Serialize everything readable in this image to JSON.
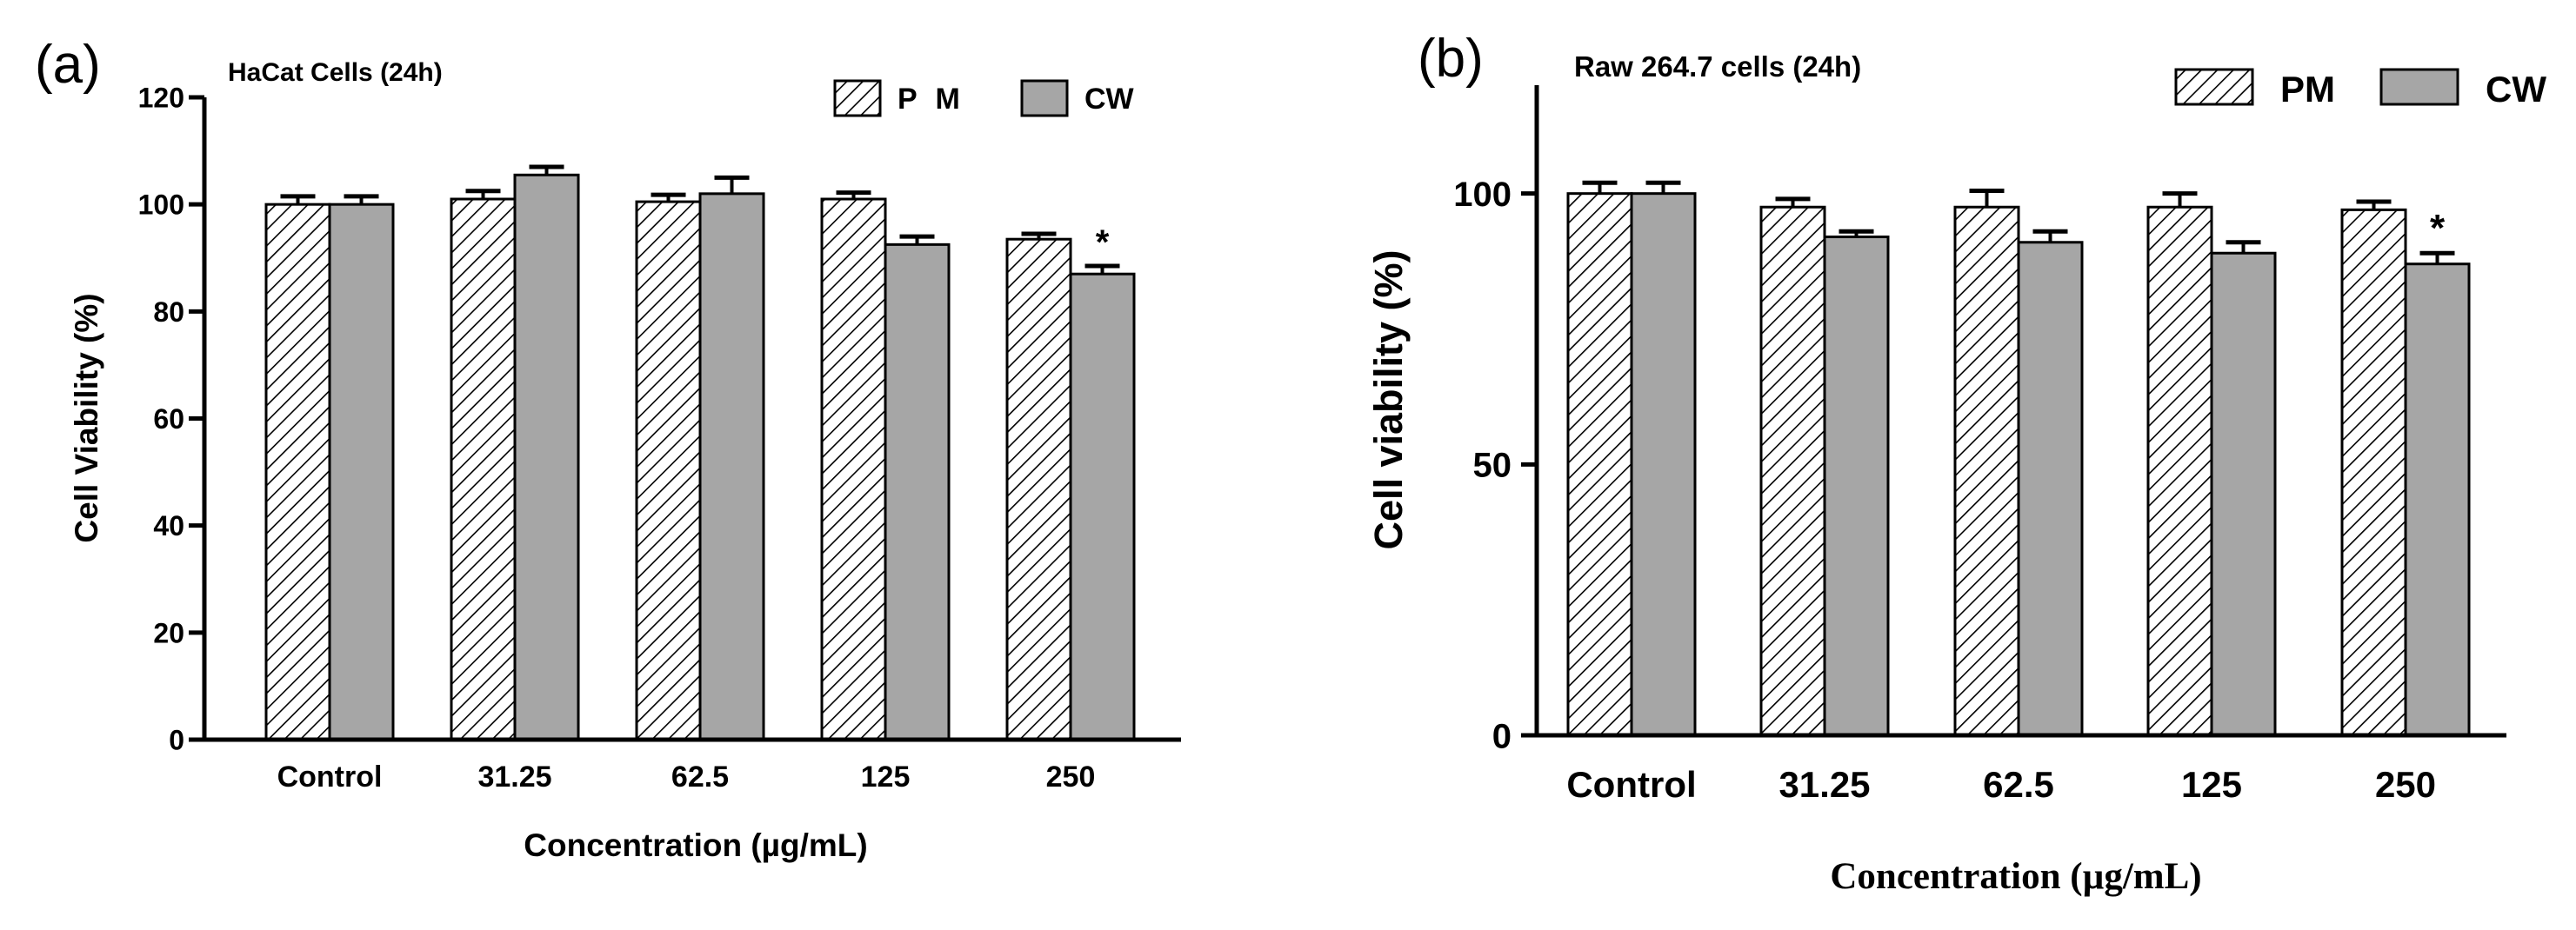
{
  "chart_data": [
    {
      "panel_label": "(a)",
      "type": "bar",
      "title": "HaCat Cells (24h)",
      "xlabel": "Concentration (µg/mL)",
      "ylabel": "Cell Viability (%)",
      "ylim": [
        0,
        120
      ],
      "yticks": [
        "0",
        "20",
        "40",
        "60",
        "80",
        "100",
        "120"
      ],
      "categories": [
        "Control",
        "31.25",
        "62.5",
        "125",
        "250"
      ],
      "legend_position": "top-right",
      "series": [
        {
          "name": "P M",
          "pattern": "hatched",
          "values": [
            100,
            101,
            100.5,
            101,
            93.5
          ],
          "errors": [
            1.5,
            1.5,
            1.3,
            1.2,
            1.0
          ]
        },
        {
          "name": "CW",
          "pattern": "gray",
          "values": [
            100,
            105.5,
            102,
            92.5,
            87
          ],
          "errors": [
            1.5,
            1.5,
            3.0,
            1.5,
            1.5
          ]
        }
      ],
      "annotations": [
        {
          "category": "250",
          "series": "CW",
          "text": "*"
        }
      ]
    },
    {
      "panel_label": "(b)",
      "type": "bar",
      "title": "Raw 264.7 cells (24h)",
      "xlabel": "Concentration (µg/mL)",
      "ylabel": "Cell viability (%)",
      "ylim": [
        0,
        120
      ],
      "yticks": [
        "0",
        "50",
        "100"
      ],
      "categories": [
        "Control",
        "31.25",
        "62.5",
        "125",
        "250"
      ],
      "legend_position": "top-right",
      "series": [
        {
          "name": "PM",
          "pattern": "hatched",
          "values": [
            100,
            97.5,
            97.5,
            97.5,
            97
          ],
          "errors": [
            2.0,
            1.5,
            3.0,
            2.5,
            1.5
          ]
        },
        {
          "name": "CW",
          "pattern": "gray",
          "values": [
            100,
            92,
            91,
            89,
            87
          ],
          "errors": [
            2.0,
            1.0,
            2.0,
            2.0,
            2.0
          ]
        }
      ],
      "annotations": [
        {
          "category": "250",
          "series": "CW",
          "text": "*"
        }
      ]
    }
  ],
  "colors": {
    "bar_gray": "#a6a6a6",
    "hatch": "#000000",
    "axis": "#000000"
  }
}
